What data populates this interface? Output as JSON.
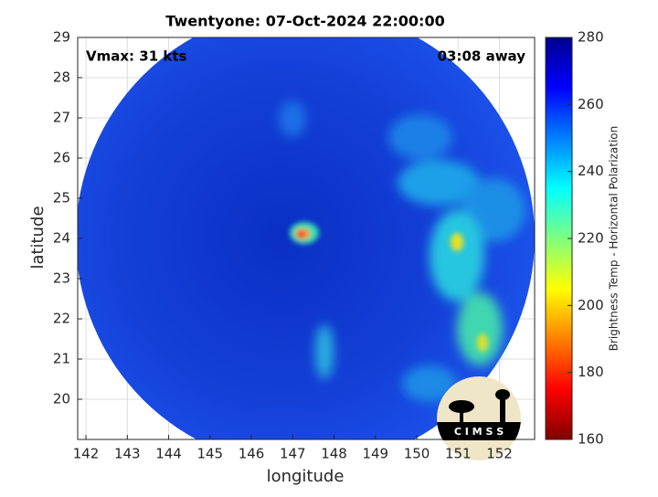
{
  "chart_data": {
    "type": "map",
    "title": "Twentyone: 07-Oct-2024 22:00:00",
    "annotations": [
      "Vmax: 31 kts",
      "03:08 away"
    ],
    "xlabel": "longitude",
    "ylabel": "latitude",
    "xlim": [
      141.8,
      152.85
    ],
    "ylim": [
      19.0,
      29
    ],
    "xticks": [
      142,
      143,
      144,
      145,
      146,
      147,
      148,
      149,
      150,
      151,
      152
    ],
    "yticks": [
      20,
      21,
      22,
      23,
      24,
      25,
      26,
      27,
      28,
      29
    ],
    "grid": true,
    "colorbar": {
      "label": "Brightness Temp - Horizontal Polarization",
      "lim": [
        160,
        280
      ],
      "ticks": [
        160,
        180,
        200,
        220,
        240,
        260,
        280
      ],
      "colormap": "jet"
    },
    "logo": "C I M S S"
  }
}
